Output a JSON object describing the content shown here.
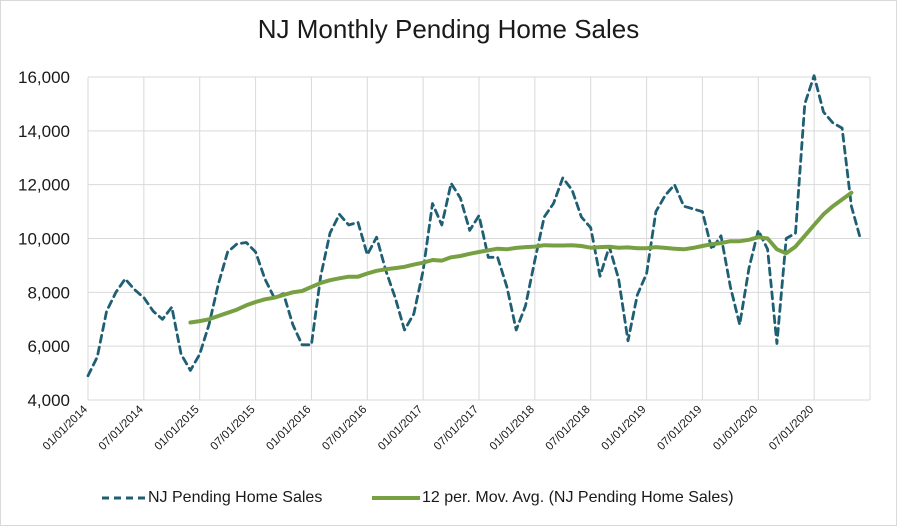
{
  "chart_data": {
    "type": "line",
    "title": "NJ Monthly Pending Home Sales",
    "ylim": [
      4000,
      16000
    ],
    "y_ticks": [
      "4,000",
      "6,000",
      "8,000",
      "10,000",
      "12,000",
      "14,000",
      "16,000"
    ],
    "x_tick_labels": [
      "01/01/2014",
      "07/01/2014",
      "01/01/2015",
      "07/01/2015",
      "01/01/2016",
      "07/01/2016",
      "01/01/2017",
      "07/01/2017",
      "01/01/2018",
      "07/01/2018",
      "01/01/2019",
      "07/01/2019",
      "01/01/2020",
      "07/01/2020"
    ],
    "x_start": "01/01/2014",
    "grid": true,
    "legend_position": "bottom",
    "series": [
      {
        "name": "NJ Pending Home Sales",
        "style": "dashed",
        "color": "#1f5f73",
        "values": [
          4900,
          5600,
          7300,
          8000,
          8500,
          8100,
          7800,
          7300,
          7000,
          7450,
          5700,
          5100,
          5700,
          6800,
          8300,
          9500,
          9800,
          9850,
          9500,
          8500,
          7800,
          7950,
          6800,
          6050,
          6050,
          8600,
          10200,
          10900,
          10500,
          10600,
          9400,
          10050,
          8800,
          7800,
          6600,
          7200,
          8800,
          11300,
          10500,
          12050,
          11500,
          10300,
          10850,
          9300,
          9300,
          8200,
          6600,
          7500,
          9200,
          10800,
          11300,
          12250,
          11800,
          10800,
          10400,
          8600,
          9700,
          8500,
          6200,
          7900,
          8700,
          11000,
          11600,
          12000,
          11200,
          11100,
          11000,
          9600,
          10100,
          8200,
          6800,
          8900,
          10300,
          9600,
          6100,
          10000,
          10200,
          15000,
          16050,
          14700,
          14300,
          14100,
          11200,
          9950
        ]
      },
      {
        "name": "12 per. Mov. Avg. (NJ Pending Home Sales)",
        "style": "solid",
        "color": "#77a043",
        "start_index": 11,
        "values": [
          6880,
          6930,
          7000,
          7120,
          7240,
          7360,
          7520,
          7640,
          7740,
          7800,
          7900,
          8000,
          8050,
          8200,
          8350,
          8450,
          8520,
          8580,
          8580,
          8700,
          8800,
          8860,
          8900,
          8950,
          9030,
          9100,
          9200,
          9180,
          9300,
          9350,
          9430,
          9500,
          9560,
          9620,
          9600,
          9650,
          9680,
          9700,
          9750,
          9740,
          9740,
          9750,
          9720,
          9660,
          9680,
          9690,
          9660,
          9670,
          9640,
          9640,
          9680,
          9650,
          9620,
          9600,
          9650,
          9720,
          9790,
          9830,
          9900,
          9900,
          9950,
          10050,
          10000,
          9600,
          9450,
          9700,
          10100,
          10500,
          10900,
          11200,
          11450,
          11700
        ]
      }
    ]
  }
}
